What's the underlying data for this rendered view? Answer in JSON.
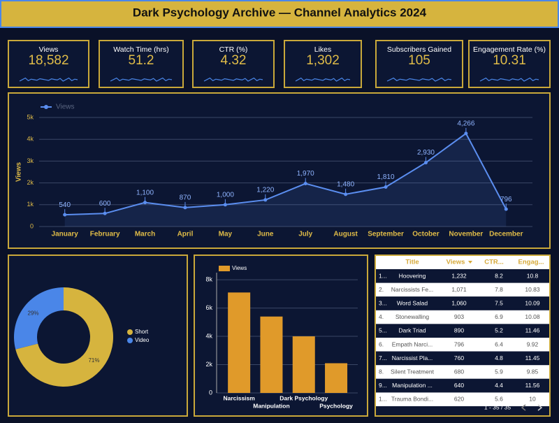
{
  "header": {
    "title": "Dark Psychology Archive — Channel Analytics 2024"
  },
  "kpis": [
    {
      "label": "Views",
      "value": "18,582"
    },
    {
      "label": "Watch Time (hrs)",
      "value": "51.2"
    },
    {
      "label": "CTR (%)",
      "value": "4.32"
    },
    {
      "label": "Likes",
      "value": "1,302"
    },
    {
      "label": "Subscribers Gained",
      "value": "105"
    },
    {
      "label": "Engagement Rate (%)",
      "value": "10.31"
    }
  ],
  "chart_data": [
    {
      "type": "line",
      "y_label": "Views",
      "categories": [
        "January",
        "February",
        "March",
        "April",
        "May",
        "June",
        "July",
        "August",
        "September",
        "October",
        "November",
        "December"
      ],
      "series": [
        {
          "name": "Views",
          "color": "#5b8ef0",
          "values": [
            540,
            600,
            1100,
            870,
            1000,
            1220,
            1970,
            1480,
            1810,
            2930,
            4266,
            796
          ],
          "value_labels": [
            "540",
            "600",
            "1,100",
            "870",
            "1,000",
            "1,220",
            "1,970",
            "1,480",
            "1,810",
            "2,930",
            "4,266",
            "796"
          ]
        }
      ],
      "ylim": [
        0,
        5000
      ],
      "yticks": [
        0,
        {
          "value": 1000,
          "label": "1k"
        },
        {
          "value": 2000,
          "label": "2k"
        },
        {
          "value": 3000,
          "label": "3k"
        },
        {
          "value": 4000,
          "label": "4k"
        },
        {
          "value": 5000,
          "label": "5k"
        }
      ],
      "grid": true
    },
    {
      "type": "pie",
      "categories": [
        "Short",
        "Video"
      ],
      "values": [
        71,
        29
      ],
      "value_labels": [
        "71%",
        "29%"
      ],
      "colors": [
        "#d6b43e",
        "#4a86e8"
      ],
      "donut": true
    },
    {
      "type": "bar",
      "categories": [
        "Narcissism",
        "Manipulation",
        "Dark Psychology",
        "Psychology"
      ],
      "series": [
        {
          "name": "Views",
          "color": "#e09a2a",
          "values": [
            7100,
            5400,
            4000,
            2100
          ]
        }
      ],
      "ylim": [
        0,
        8500
      ],
      "yticks": [
        0,
        {
          "value": 2000,
          "label": "2k"
        },
        {
          "value": 4000,
          "label": "4k"
        },
        {
          "value": 6000,
          "label": "6k"
        },
        {
          "value": 8000,
          "label": "8k"
        }
      ],
      "grid": true
    }
  ],
  "table": {
    "columns": [
      "Title",
      "Views",
      "CTR...",
      "Engag..."
    ],
    "rows": [
      [
        "1...",
        "Hoovering",
        "1,232",
        "8.2",
        "10.8"
      ],
      [
        "2.",
        "Narcissists Fe...",
        "1,071",
        "7.8",
        "10.83"
      ],
      [
        "3...",
        "Word Salad",
        "1,060",
        "7.5",
        "10.09"
      ],
      [
        "4.",
        "Stonewalling",
        "903",
        "6.9",
        "10.08"
      ],
      [
        "5...",
        "Dark Triad",
        "890",
        "5.2",
        "11.46"
      ],
      [
        "6.",
        "Empath Narci...",
        "796",
        "6.4",
        "9.92"
      ],
      [
        "7...",
        "Narcissist Pla...",
        "760",
        "4.8",
        "11.45"
      ],
      [
        "8.",
        "Silent Treatment",
        "680",
        "5.9",
        "9.85"
      ],
      [
        "9...",
        "Manipulation ...",
        "640",
        "4.4",
        "11.56"
      ],
      [
        "1...",
        "Trauma Bondi...",
        "620",
        "5.6",
        "10"
      ]
    ],
    "footer": "1 - 35 / 35"
  }
}
